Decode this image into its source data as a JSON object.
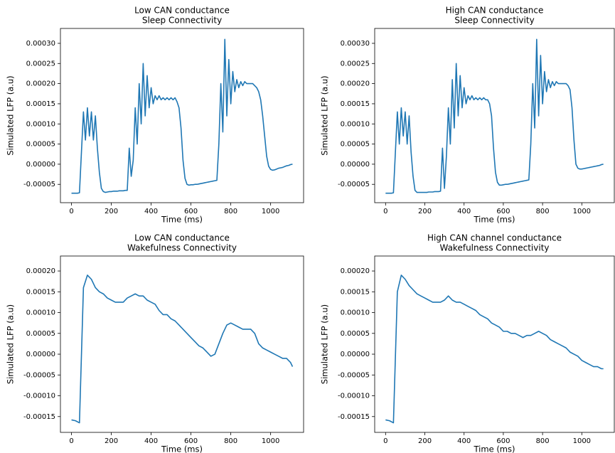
{
  "chart_data": [
    {
      "type": "line",
      "title": "Low CAN conductance",
      "subtitle": "Sleep Connectivity",
      "xlabel": "Time (ms)",
      "ylabel": "Simulated LFP (a.u)",
      "xlim": [
        -55.5,
        1165.5
      ],
      "ylim": [
        -9.55e-05,
        0.000337
      ],
      "xticks": [
        0,
        200,
        400,
        600,
        800,
        1000
      ],
      "yticks": [
        {
          "value": -5e-05,
          "label": "-0.00005"
        },
        {
          "value": 0,
          "label": "0.00000"
        },
        {
          "value": 5e-05,
          "label": "0.00005"
        },
        {
          "value": 0.0001,
          "label": "0.00010"
        },
        {
          "value": 0.00015,
          "label": "0.00015"
        },
        {
          "value": 0.0002,
          "label": "0.00020"
        },
        {
          "value": 0.00025,
          "label": "0.00025"
        },
        {
          "value": 0.0003,
          "label": "0.00030"
        }
      ],
      "series": [
        {
          "color": "#1f77b4",
          "x": [
            0,
            10,
            20,
            30,
            40,
            50,
            60,
            70,
            80,
            90,
            100,
            110,
            120,
            130,
            140,
            150,
            160,
            170,
            180,
            190,
            200,
            210,
            220,
            230,
            240,
            250,
            260,
            270,
            280,
            290,
            300,
            310,
            320,
            330,
            340,
            350,
            360,
            370,
            380,
            390,
            400,
            410,
            420,
            430,
            440,
            450,
            460,
            470,
            480,
            490,
            500,
            510,
            520,
            530,
            540,
            550,
            560,
            570,
            580,
            590,
            600,
            610,
            620,
            630,
            640,
            650,
            660,
            670,
            680,
            690,
            700,
            710,
            720,
            730,
            740,
            750,
            760,
            770,
            780,
            790,
            800,
            810,
            820,
            830,
            840,
            850,
            860,
            870,
            880,
            890,
            900,
            910,
            920,
            930,
            940,
            950,
            960,
            970,
            980,
            990,
            1000,
            1010,
            1020,
            1030,
            1040,
            1050,
            1060,
            1070,
            1080,
            1090,
            1100,
            1110
          ],
          "values": [
            -7.2e-05,
            -7.2e-05,
            -7.2e-05,
            -7.2e-05,
            -7.1e-05,
            3e-05,
            0.00013,
            6e-05,
            0.00014,
            7e-05,
            0.00013,
            6e-05,
            0.00012,
            4e-05,
            -2e-05,
            -6e-05,
            -6.8e-05,
            -7e-05,
            -6.9e-05,
            -6.8e-05,
            -6.8e-05,
            -6.7e-05,
            -6.7e-05,
            -6.7e-05,
            -6.6e-05,
            -6.6e-05,
            -6.6e-05,
            -6.5e-05,
            -6.5e-05,
            4e-05,
            -3e-05,
            1e-05,
            0.00014,
            5e-05,
            0.0002,
            0.0001,
            0.00025,
            0.00012,
            0.00022,
            0.00014,
            0.00019,
            0.00015,
            0.00017,
            0.00016,
            0.00017,
            0.00016,
            0.000165,
            0.00016,
            0.000165,
            0.00016,
            0.000165,
            0.00016,
            0.000165,
            0.000155,
            0.00014,
            9e-05,
            1e-05,
            -3.5e-05,
            -5e-05,
            -5.2e-05,
            -5.1e-05,
            -5.1e-05,
            -5e-05,
            -5e-05,
            -4.9e-05,
            -4.8e-05,
            -4.7e-05,
            -4.6e-05,
            -4.5e-05,
            -4.4e-05,
            -4.3e-05,
            -4.2e-05,
            -4.1e-05,
            -4e-05,
            5e-05,
            0.0002,
            8e-05,
            0.00031,
            0.00012,
            0.00026,
            0.00015,
            0.00023,
            0.00018,
            0.00021,
            0.00019,
            0.000205,
            0.000195,
            0.000205,
            0.0002,
            0.0002,
            0.0002,
            0.0002,
            0.000195,
            0.00019,
            0.00018,
            0.00016,
            0.00012,
            7e-05,
            2e-05,
            -5e-06,
            -1.3e-05,
            -1.5e-05,
            -1.4e-05,
            -1.2e-05,
            -1e-05,
            -9e-06,
            -8e-06,
            -6e-06,
            -4e-06,
            -3e-06,
            -1e-06,
            0
          ]
        }
      ]
    },
    {
      "type": "line",
      "title": "High CAN conductance",
      "subtitle": "Sleep Connectivity",
      "xlabel": "Time (ms)",
      "ylabel": "Simulated LFP (a.u)",
      "xlim": [
        -55.5,
        1165.5
      ],
      "ylim": [
        -9.55e-05,
        0.000337
      ],
      "xticks": [
        0,
        200,
        400,
        600,
        800,
        1000
      ],
      "yticks": [
        {
          "value": -5e-05,
          "label": "-0.00005"
        },
        {
          "value": 0,
          "label": "0.00000"
        },
        {
          "value": 5e-05,
          "label": "0.00005"
        },
        {
          "value": 0.0001,
          "label": "0.00010"
        },
        {
          "value": 0.00015,
          "label": "0.00015"
        },
        {
          "value": 0.0002,
          "label": "0.00020"
        },
        {
          "value": 0.00025,
          "label": "0.00025"
        },
        {
          "value": 0.0003,
          "label": "0.00030"
        }
      ],
      "series": [
        {
          "color": "#1f77b4",
          "x": [
            0,
            10,
            20,
            30,
            40,
            50,
            60,
            70,
            80,
            90,
            100,
            110,
            120,
            130,
            140,
            150,
            160,
            170,
            180,
            190,
            200,
            210,
            220,
            230,
            240,
            250,
            260,
            270,
            280,
            290,
            300,
            310,
            320,
            330,
            340,
            350,
            360,
            370,
            380,
            390,
            400,
            410,
            420,
            430,
            440,
            450,
            460,
            470,
            480,
            490,
            500,
            510,
            520,
            530,
            540,
            550,
            560,
            570,
            580,
            590,
            600,
            610,
            620,
            630,
            640,
            650,
            660,
            670,
            680,
            690,
            700,
            710,
            720,
            730,
            740,
            750,
            760,
            770,
            780,
            790,
            800,
            810,
            820,
            830,
            840,
            850,
            860,
            870,
            880,
            890,
            900,
            910,
            920,
            930,
            940,
            950,
            960,
            970,
            980,
            990,
            1000,
            1010,
            1020,
            1030,
            1040,
            1050,
            1060,
            1070,
            1080,
            1090,
            1100,
            1110
          ],
          "values": [
            -7.2e-05,
            -7.2e-05,
            -7.2e-05,
            -7.2e-05,
            -7.1e-05,
            3e-05,
            0.00013,
            5e-05,
            0.00014,
            7e-05,
            0.00013,
            5e-05,
            0.00012,
            3e-05,
            -3e-05,
            -6.5e-05,
            -7e-05,
            -7e-05,
            -7e-05,
            -7e-05,
            -7e-05,
            -7e-05,
            -6.9e-05,
            -6.9e-05,
            -6.9e-05,
            -6.8e-05,
            -6.8e-05,
            -6.8e-05,
            -6.7e-05,
            4e-05,
            -6e-05,
            2e-05,
            0.00014,
            5e-05,
            0.00021,
            9e-05,
            0.00025,
            0.00012,
            0.00022,
            0.00014,
            0.00019,
            0.00015,
            0.00017,
            0.00016,
            0.00017,
            0.00016,
            0.000165,
            0.00016,
            0.000165,
            0.00016,
            0.000165,
            0.00016,
            0.00016,
            0.00015,
            0.00012,
            4e-05,
            -2e-05,
            -4.5e-05,
            -5.2e-05,
            -5.2e-05,
            -5.1e-05,
            -5e-05,
            -5e-05,
            -4.9e-05,
            -4.8e-05,
            -4.7e-05,
            -4.6e-05,
            -4.5e-05,
            -4.4e-05,
            -4.3e-05,
            -4.2e-05,
            -4.1e-05,
            -4e-05,
            -3.9e-05,
            5e-05,
            0.0002,
            9e-05,
            0.00031,
            0.00012,
            0.00027,
            0.00015,
            0.00023,
            0.00018,
            0.00021,
            0.00019,
            0.000205,
            0.000195,
            0.000205,
            0.0002,
            0.0002,
            0.0002,
            0.0002,
            0.0002,
            0.000195,
            0.000185,
            0.00014,
            6e-05,
            0,
            -1e-05,
            -1.2e-05,
            -1.2e-05,
            -1.1e-05,
            -1e-05,
            -9e-06,
            -8e-06,
            -7e-06,
            -6e-06,
            -5e-06,
            -4e-06,
            -3e-06,
            -1e-06,
            0
          ]
        }
      ]
    },
    {
      "type": "line",
      "title": "Low CAN conductance",
      "subtitle": "Wakefulness Connectivity",
      "xlabel": "Time (ms)",
      "ylabel": "Simulated LFP (a.u)",
      "xlim": [
        -55.5,
        1165.5
      ],
      "ylim": [
        -0.000188,
        0.000236
      ],
      "xticks": [
        0,
        200,
        400,
        600,
        800,
        1000
      ],
      "yticks": [
        {
          "value": -0.00015,
          "label": "-0.00015"
        },
        {
          "value": -0.0001,
          "label": "-0.00010"
        },
        {
          "value": -5e-05,
          "label": "-0.00005"
        },
        {
          "value": 0,
          "label": "0.00000"
        },
        {
          "value": 5e-05,
          "label": "0.00005"
        },
        {
          "value": 0.0001,
          "label": "0.00010"
        },
        {
          "value": 0.00015,
          "label": "0.00015"
        },
        {
          "value": 0.0002,
          "label": "0.00020"
        }
      ],
      "series": [
        {
          "color": "#1f77b4",
          "x": [
            0,
            20,
            40,
            60,
            80,
            100,
            120,
            140,
            160,
            180,
            200,
            220,
            240,
            260,
            280,
            300,
            320,
            340,
            360,
            380,
            400,
            420,
            440,
            460,
            480,
            500,
            520,
            540,
            560,
            580,
            600,
            620,
            640,
            660,
            680,
            700,
            720,
            740,
            760,
            780,
            800,
            820,
            840,
            860,
            880,
            900,
            920,
            940,
            960,
            980,
            1000,
            1020,
            1040,
            1060,
            1080,
            1100,
            1110
          ],
          "values": [
            -0.000158,
            -0.00016,
            -0.000165,
            0.00016,
            0.00019,
            0.00018,
            0.00016,
            0.00015,
            0.000145,
            0.000135,
            0.00013,
            0.000125,
            0.000125,
            0.000125,
            0.000135,
            0.00014,
            0.000145,
            0.00014,
            0.00014,
            0.00013,
            0.000125,
            0.00012,
            0.000105,
            9.5e-05,
            9.5e-05,
            8.5e-05,
            8e-05,
            7e-05,
            6e-05,
            5e-05,
            4e-05,
            3e-05,
            2e-05,
            1.5e-05,
            5e-06,
            -5e-06,
            0,
            2.5e-05,
            5e-05,
            7e-05,
            7.5e-05,
            7e-05,
            6.5e-05,
            6e-05,
            6e-05,
            6e-05,
            5e-05,
            2.5e-05,
            1.5e-05,
            1e-05,
            5e-06,
            0,
            -5e-06,
            -1e-05,
            -1e-05,
            -2e-05,
            -3e-05
          ]
        }
      ]
    },
    {
      "type": "line",
      "title": "High CAN channel conductance",
      "subtitle": "Wakefulness Connectivity",
      "xlabel": "Time (ms)",
      "ylabel": "Simulated LFP (a.u)",
      "xlim": [
        -55.5,
        1165.5
      ],
      "ylim": [
        -0.000188,
        0.000236
      ],
      "xticks": [
        0,
        200,
        400,
        600,
        800,
        1000
      ],
      "yticks": [
        {
          "value": -0.00015,
          "label": "-0.00015"
        },
        {
          "value": -0.0001,
          "label": "-0.00010"
        },
        {
          "value": -5e-05,
          "label": "-0.00005"
        },
        {
          "value": 0,
          "label": "0.00000"
        },
        {
          "value": 5e-05,
          "label": "0.00005"
        },
        {
          "value": 0.0001,
          "label": "0.00010"
        },
        {
          "value": 0.00015,
          "label": "0.00015"
        },
        {
          "value": 0.0002,
          "label": "0.00020"
        }
      ],
      "series": [
        {
          "color": "#1f77b4",
          "x": [
            0,
            20,
            40,
            60,
            80,
            100,
            120,
            140,
            160,
            180,
            200,
            220,
            240,
            260,
            280,
            300,
            320,
            340,
            360,
            380,
            400,
            420,
            440,
            460,
            480,
            500,
            520,
            540,
            560,
            580,
            600,
            620,
            640,
            660,
            680,
            700,
            720,
            740,
            760,
            780,
            800,
            820,
            840,
            860,
            880,
            900,
            920,
            940,
            960,
            980,
            1000,
            1020,
            1040,
            1060,
            1080,
            1100,
            1110
          ],
          "values": [
            -0.000158,
            -0.00016,
            -0.000165,
            0.00015,
            0.00019,
            0.00018,
            0.000165,
            0.000155,
            0.000145,
            0.00014,
            0.000135,
            0.00013,
            0.000125,
            0.000125,
            0.000125,
            0.00013,
            0.00014,
            0.00013,
            0.000125,
            0.000125,
            0.00012,
            0.000115,
            0.00011,
            0.000105,
            9.5e-05,
            9e-05,
            8.5e-05,
            7.5e-05,
            7e-05,
            6.5e-05,
            5.5e-05,
            5.5e-05,
            5e-05,
            5e-05,
            4.5e-05,
            4e-05,
            4.5e-05,
            4.5e-05,
            5e-05,
            5.5e-05,
            5e-05,
            4.5e-05,
            3.5e-05,
            3e-05,
            2.5e-05,
            2e-05,
            1.5e-05,
            5e-06,
            0,
            -5e-06,
            -1.5e-05,
            -2e-05,
            -2.5e-05,
            -3e-05,
            -3e-05,
            -3.5e-05,
            -3.5e-05
          ]
        }
      ]
    }
  ]
}
